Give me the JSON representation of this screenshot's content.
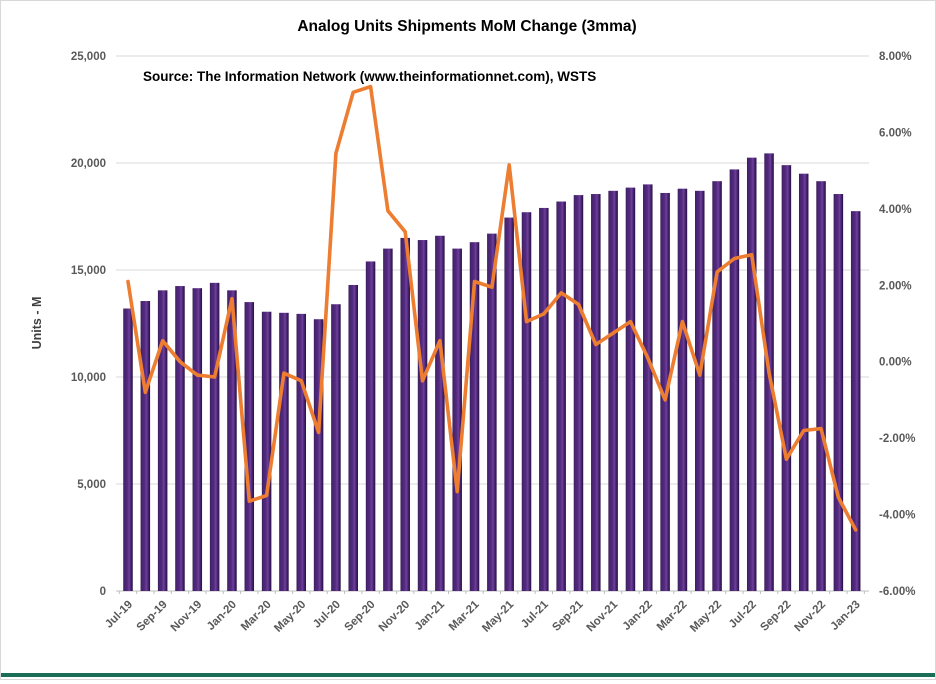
{
  "chart": {
    "title": "Analog Units Shipments MoM Change (3mma)",
    "source": "Source: The Information Network (www.theinformationnet.com), WSTS",
    "y_axis_title_left": "Units - M"
  },
  "chart_data": {
    "type": "combo",
    "title": "Analog Units Shipments MoM Change (3mma)",
    "subtitle": "Source: The Information Network (www.theinformationnet.com), WSTS",
    "grid": "horizontal",
    "legend_position": "none",
    "x_label_rotation": -45,
    "x_labels_shown_every": 2,
    "categories": [
      "Jul-19",
      "Aug-19",
      "Sep-19",
      "Oct-19",
      "Nov-19",
      "Dec-19",
      "Jan-20",
      "Feb-20",
      "Mar-20",
      "Apr-20",
      "May-20",
      "Jun-20",
      "Jul-20",
      "Aug-20",
      "Sep-20",
      "Oct-20",
      "Nov-20",
      "Dec-20",
      "Jan-21",
      "Feb-21",
      "Mar-21",
      "Apr-21",
      "May-21",
      "Jun-21",
      "Jul-21",
      "Aug-21",
      "Sep-21",
      "Oct-21",
      "Nov-21",
      "Dec-21",
      "Jan-22",
      "Feb-22",
      "Mar-22",
      "Apr-22",
      "May-22",
      "Jun-22",
      "Jul-22",
      "Aug-22",
      "Sep-22",
      "Oct-22",
      "Nov-22",
      "Dec-22",
      "Jan-23"
    ],
    "axis_left": {
      "title": "Units - M",
      "min": 0,
      "max": 25000,
      "step": 5000,
      "tick_labels": [
        "25,000",
        "20,000",
        "15,000",
        "10,000",
        "5,000",
        "0"
      ]
    },
    "axis_right": {
      "min": -6,
      "max": 8,
      "step": 2,
      "tick_labels": [
        "8.00%",
        "6.00%",
        "4.00%",
        "2.00%",
        "0.00%",
        "-2.00%",
        "-4.00%",
        "-6.00%"
      ]
    },
    "series": [
      {
        "name": "Analog Units Shipments",
        "type": "bar",
        "axis": "left",
        "color": "#4B2569",
        "values": [
          13200,
          13550,
          14050,
          14250,
          14150,
          14400,
          14050,
          13500,
          13050,
          13000,
          12950,
          12700,
          13400,
          14300,
          15400,
          16000,
          16500,
          16400,
          16600,
          16000,
          16300,
          16700,
          17450,
          17700,
          17900,
          18200,
          18500,
          18550,
          18700,
          18850,
          19000,
          18600,
          18800,
          18700,
          19150,
          19700,
          20250,
          20450,
          19900,
          19500,
          19150,
          18550,
          17750
        ]
      },
      {
        "name": "MoM Change (3mma)",
        "type": "line",
        "axis": "right",
        "color": "#ED7D31",
        "values": [
          2.1,
          -0.8,
          0.55,
          0.0,
          -0.35,
          -0.4,
          1.65,
          -3.65,
          -3.5,
          -0.3,
          -0.5,
          -1.85,
          5.45,
          7.05,
          7.2,
          3.95,
          3.4,
          -0.5,
          0.55,
          -3.4,
          2.1,
          1.95,
          5.15,
          1.05,
          1.25,
          1.8,
          1.5,
          0.45,
          0.75,
          1.05,
          0.1,
          -1.0,
          1.05,
          -0.35,
          2.35,
          2.7,
          2.8,
          -0.3,
          -2.55,
          -1.8,
          -1.75,
          -3.55,
          -4.4
        ]
      }
    ]
  }
}
